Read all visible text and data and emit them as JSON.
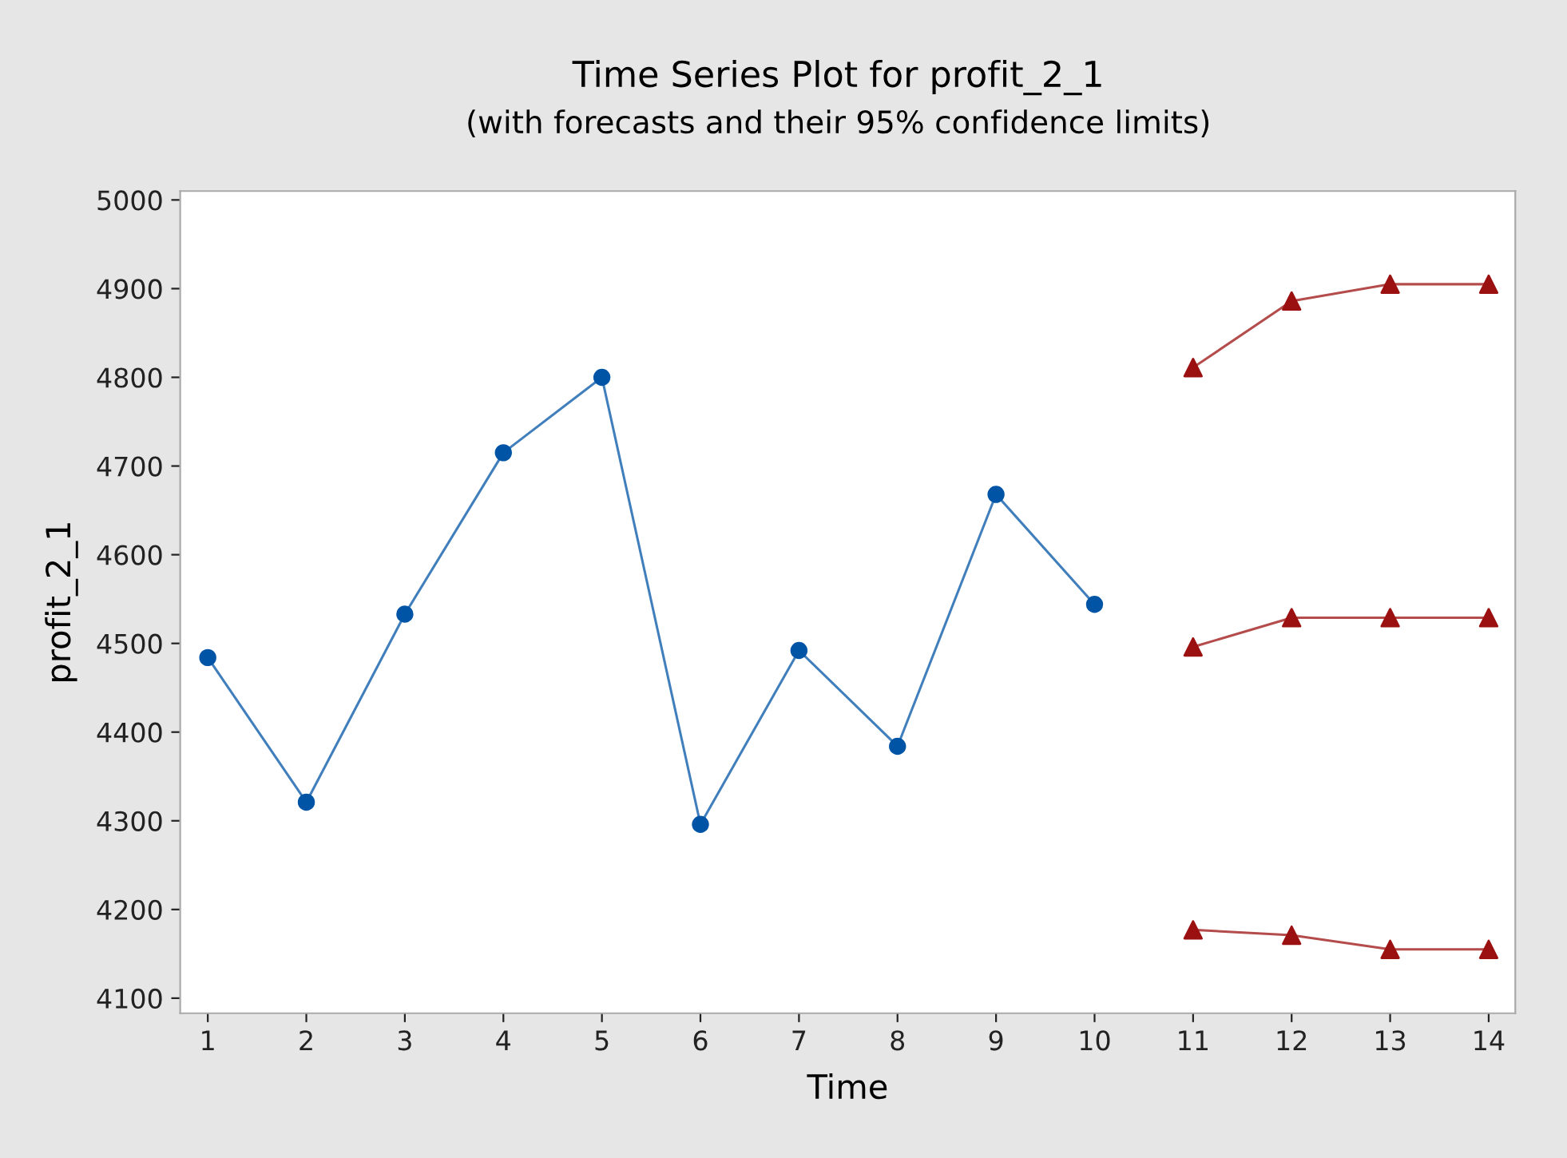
{
  "chart_data": {
    "type": "line",
    "title": "Time Series Plot for profit_2_1",
    "subtitle": "(with forecasts and their 95% confidence limits)",
    "xlabel": "Time",
    "ylabel": "profit_2_1",
    "xlim": [
      0.72,
      14.27
    ],
    "ylim": [
      4083,
      5010
    ],
    "xticks": [
      1,
      2,
      3,
      4,
      5,
      6,
      7,
      8,
      9,
      10,
      11,
      12,
      13,
      14
    ],
    "yticks": [
      4100,
      4200,
      4300,
      4400,
      4500,
      4600,
      4700,
      4800,
      4900,
      5000
    ],
    "grid": false,
    "series": [
      {
        "color": "#0054a6",
        "marker": "circle",
        "x": [
          1,
          2,
          3,
          4,
          5,
          6,
          7,
          8,
          9,
          10
        ],
        "values": [
          4484,
          4321,
          4533,
          4715,
          4800,
          4296,
          4492,
          4384,
          4668,
          4544
        ]
      },
      {
        "color": "#9b1010",
        "marker": "triangle",
        "x": [
          11,
          12,
          13,
          14
        ],
        "values": [
          4811,
          4886,
          4905,
          4905
        ]
      },
      {
        "color": "#9b1010",
        "marker": "triangle",
        "x": [
          11,
          12,
          13,
          14
        ],
        "values": [
          4496,
          4529,
          4529,
          4529
        ]
      },
      {
        "color": "#9b1010",
        "marker": "triangle",
        "x": [
          11,
          12,
          13,
          14
        ],
        "values": [
          4177,
          4171,
          4155,
          4155
        ]
      }
    ]
  }
}
